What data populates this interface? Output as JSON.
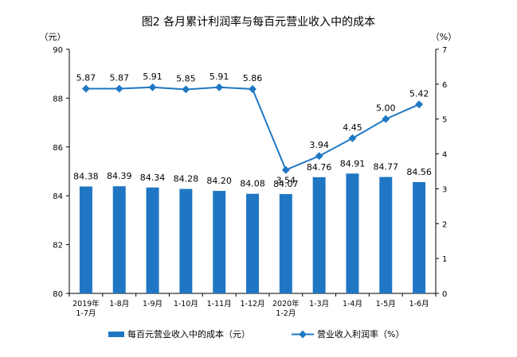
{
  "chart_data": {
    "type": "bar+line",
    "title": "图2 各月累计利润率与每百元营业收入中的成本",
    "left_unit": "（元）",
    "right_unit": "（%）",
    "categories": [
      [
        "2019年",
        "1-7月"
      ],
      [
        "1-8月"
      ],
      [
        "1-9月"
      ],
      [
        "1-10月"
      ],
      [
        "1-11月"
      ],
      [
        "1-12月"
      ],
      [
        "2020年",
        "1-2月"
      ],
      [
        "1-3月"
      ],
      [
        "1-4月"
      ],
      [
        "1-5月"
      ],
      [
        "1-6月"
      ]
    ],
    "series": [
      {
        "name": "每百元营业收入中的成本（元）",
        "kind": "bar",
        "axis": "left",
        "color": "#1f77c4",
        "values": [
          84.38,
          84.39,
          84.34,
          84.28,
          84.2,
          84.08,
          84.07,
          84.76,
          84.91,
          84.77,
          84.56
        ],
        "labels": [
          "84.38",
          "84.39",
          "84.34",
          "84.28",
          "84.20",
          "84.08",
          "84.07",
          "84.76",
          "84.91",
          "84.77",
          "84.56"
        ]
      },
      {
        "name": "营业收入利润率（%）",
        "kind": "line",
        "axis": "right",
        "color": "#1f77c4",
        "values": [
          5.87,
          5.87,
          5.91,
          5.85,
          5.91,
          5.86,
          3.54,
          3.94,
          4.45,
          5.0,
          5.42
        ],
        "labels": [
          "5.87",
          "5.87",
          "5.91",
          "5.85",
          "5.91",
          "5.86",
          "3.54",
          "3.94",
          "4.45",
          "5.00",
          "5.42"
        ]
      }
    ],
    "left_axis": {
      "min": 80,
      "max": 90,
      "ticks": [
        "80",
        "82",
        "84",
        "86",
        "88",
        "90"
      ]
    },
    "right_axis": {
      "min": 0,
      "max": 7,
      "ticks": [
        "0",
        "1",
        "2",
        "3",
        "4",
        "5",
        "6",
        "7"
      ]
    },
    "grid": false,
    "legend_position": "bottom"
  }
}
